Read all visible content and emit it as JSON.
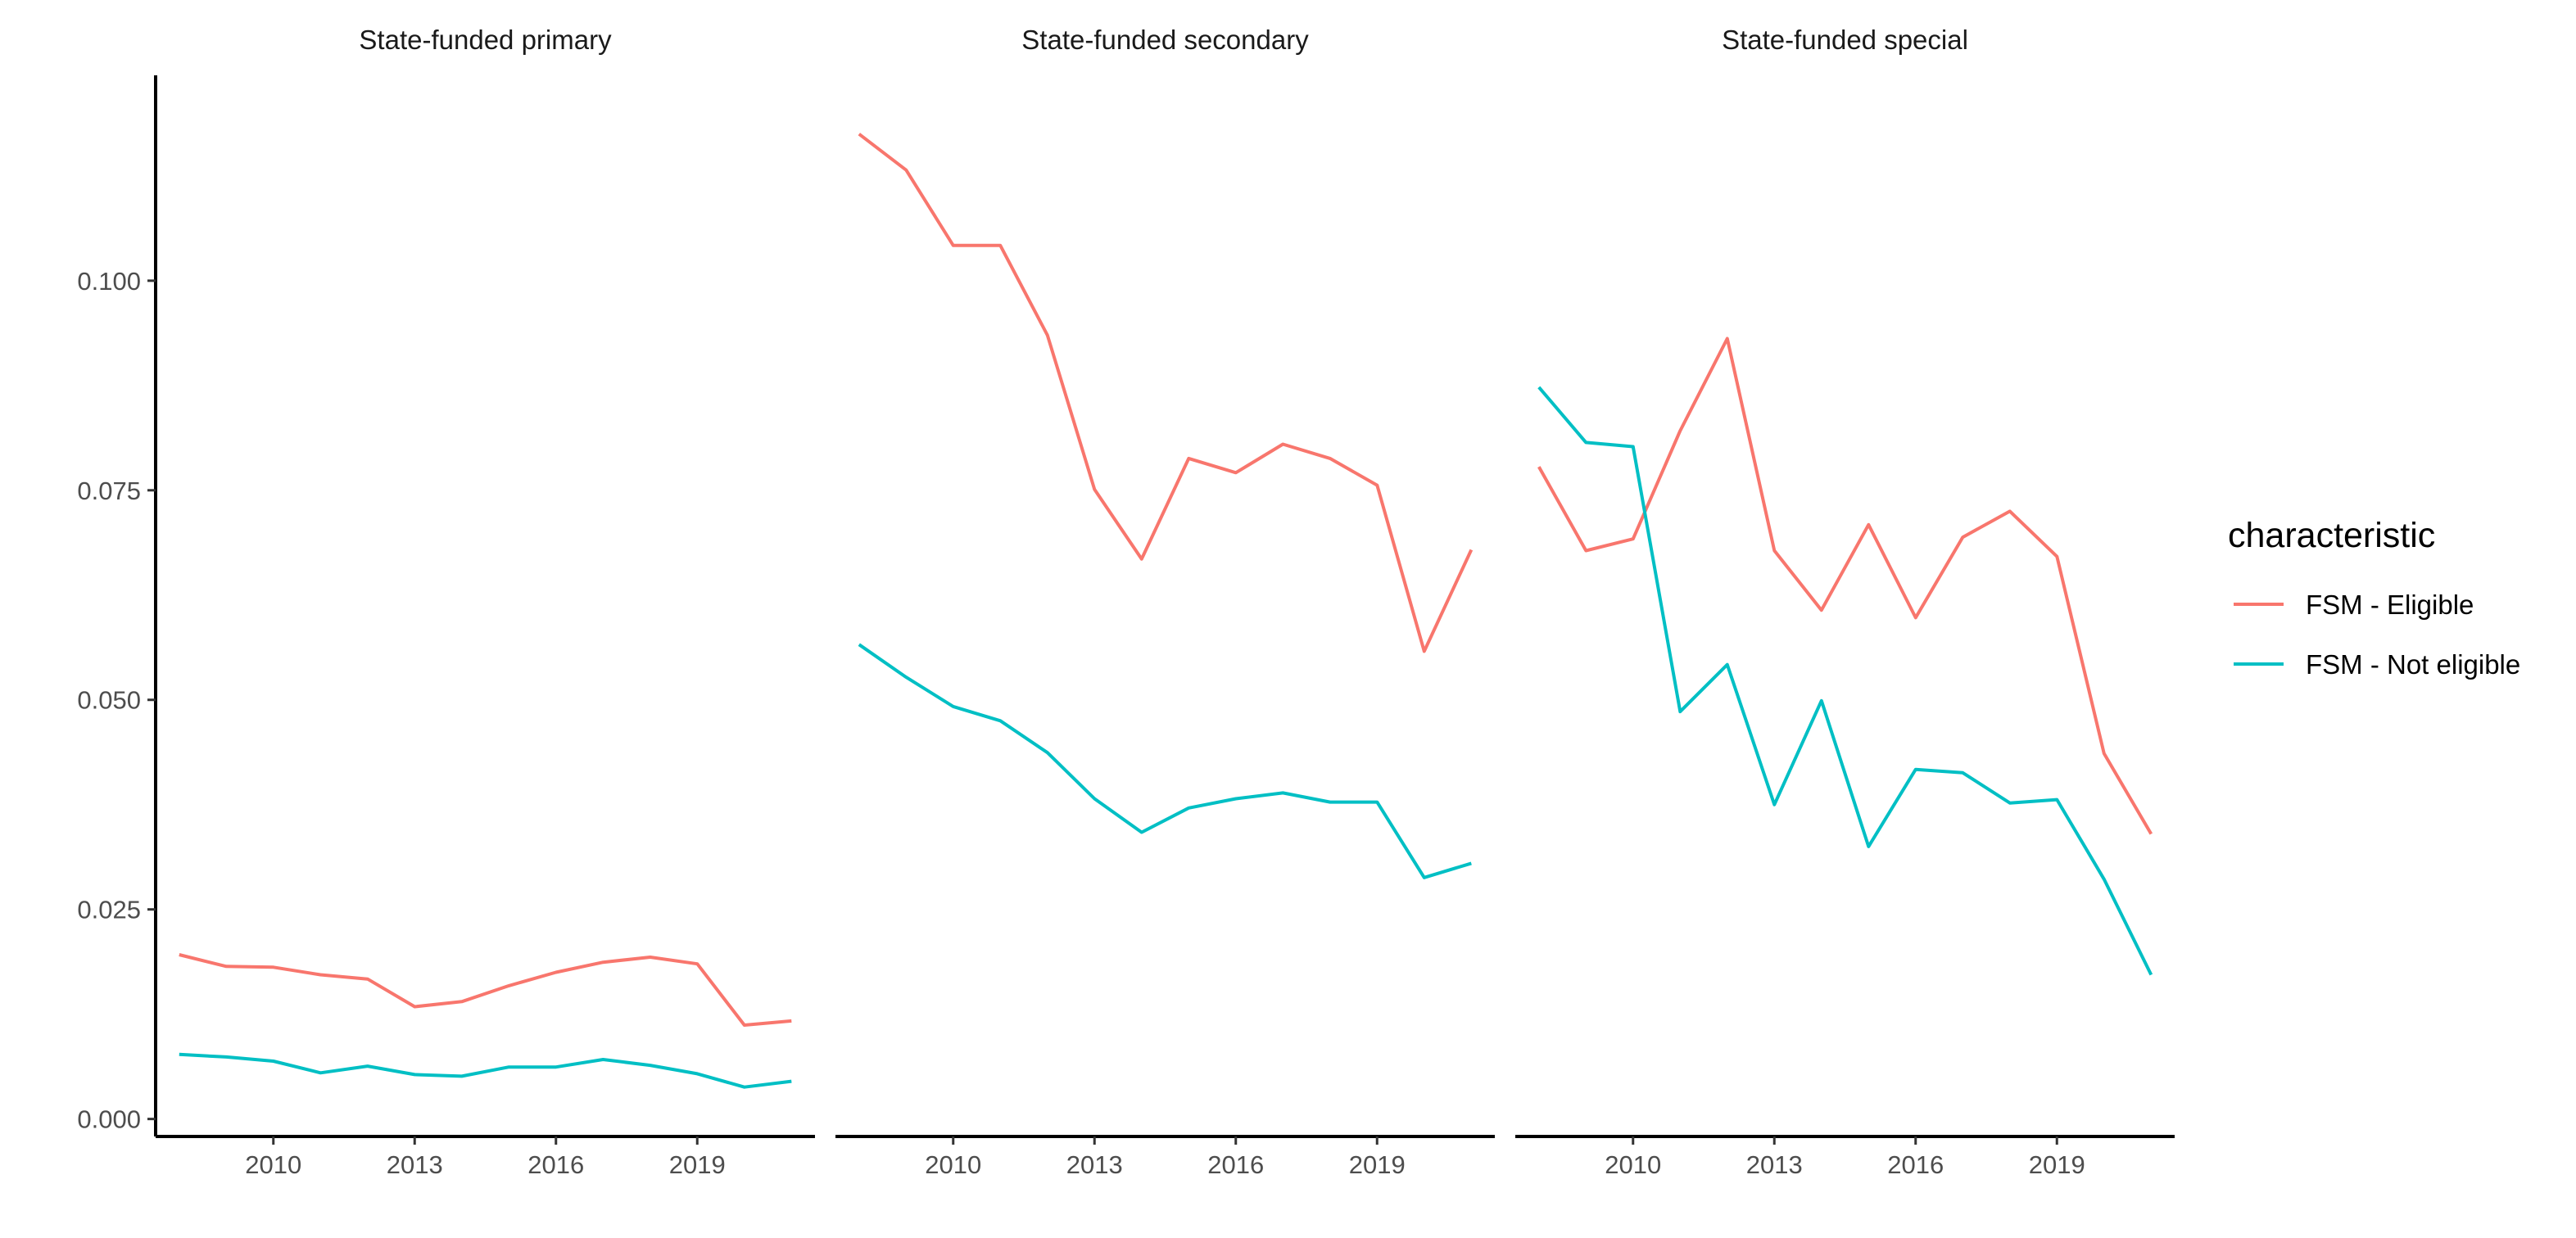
{
  "chart_data": {
    "type": "line",
    "facet_by": "school type",
    "facets": [
      {
        "title": "State-funded primary"
      },
      {
        "title": "State-funded secondary"
      },
      {
        "title": "State-funded special"
      }
    ],
    "x": [
      2008,
      2009,
      2010,
      2011,
      2012,
      2013,
      2014,
      2015,
      2016,
      2017,
      2018,
      2019,
      2020,
      2021
    ],
    "xlim": [
      2007.5,
      2021.5
    ],
    "x_ticks": [
      2010,
      2013,
      2016,
      2019
    ],
    "x_tick_labels": [
      "2010",
      "2013",
      "2016",
      "2019"
    ],
    "ylim": [
      -0.0015,
      0.1245
    ],
    "y_ticks": [
      0,
      0.025,
      0.05,
      0.075,
      0.1
    ],
    "y_tick_labels": [
      "0.000",
      "0.025",
      "0.050",
      "0.075",
      "0.100"
    ],
    "xlabel": "",
    "ylabel": "",
    "grid": false,
    "legend": {
      "title": "characteristic",
      "position": "right",
      "entries": [
        {
          "name": "FSM - Eligible",
          "color": "#F8766D"
        },
        {
          "name": "FSM - Not eligible",
          "color": "#00BFC4"
        }
      ]
    },
    "series": [
      {
        "name": "FSM - Eligible",
        "color": "#F8766D",
        "values_by_facet": [
          [
            0.0196,
            0.0182,
            0.0181,
            0.0172,
            0.0167,
            0.0134,
            0.014,
            0.0159,
            0.0175,
            0.0187,
            0.0193,
            0.0185,
            0.0112,
            0.0117
          ],
          [
            0.1175,
            0.1132,
            0.1042,
            0.1042,
            0.0935,
            0.0751,
            0.0668,
            0.0788,
            0.0771,
            0.0805,
            0.0788,
            0.0756,
            0.0558,
            0.0679
          ],
          [
            0.0778,
            0.0678,
            0.0692,
            0.0821,
            0.0931,
            0.0678,
            0.0607,
            0.0709,
            0.0598,
            0.0694,
            0.0725,
            0.0671,
            0.0436,
            0.034
          ]
        ]
      },
      {
        "name": "FSM - Not eligible",
        "color": "#00BFC4",
        "values_by_facet": [
          [
            0.0077,
            0.0074,
            0.0069,
            0.0055,
            0.0063,
            0.0053,
            0.0051,
            0.0062,
            0.0062,
            0.0071,
            0.0064,
            0.0054,
            0.0038,
            0.0045
          ],
          [
            0.0566,
            0.0527,
            0.0492,
            0.0475,
            0.0437,
            0.0382,
            0.0342,
            0.0371,
            0.0382,
            0.0389,
            0.0378,
            0.0378,
            0.0288,
            0.0305
          ],
          [
            0.0873,
            0.0807,
            0.0802,
            0.0486,
            0.0542,
            0.0375,
            0.0499,
            0.0325,
            0.0417,
            0.0413,
            0.0377,
            0.0381,
            0.0286,
            0.0172
          ]
        ]
      }
    ]
  }
}
